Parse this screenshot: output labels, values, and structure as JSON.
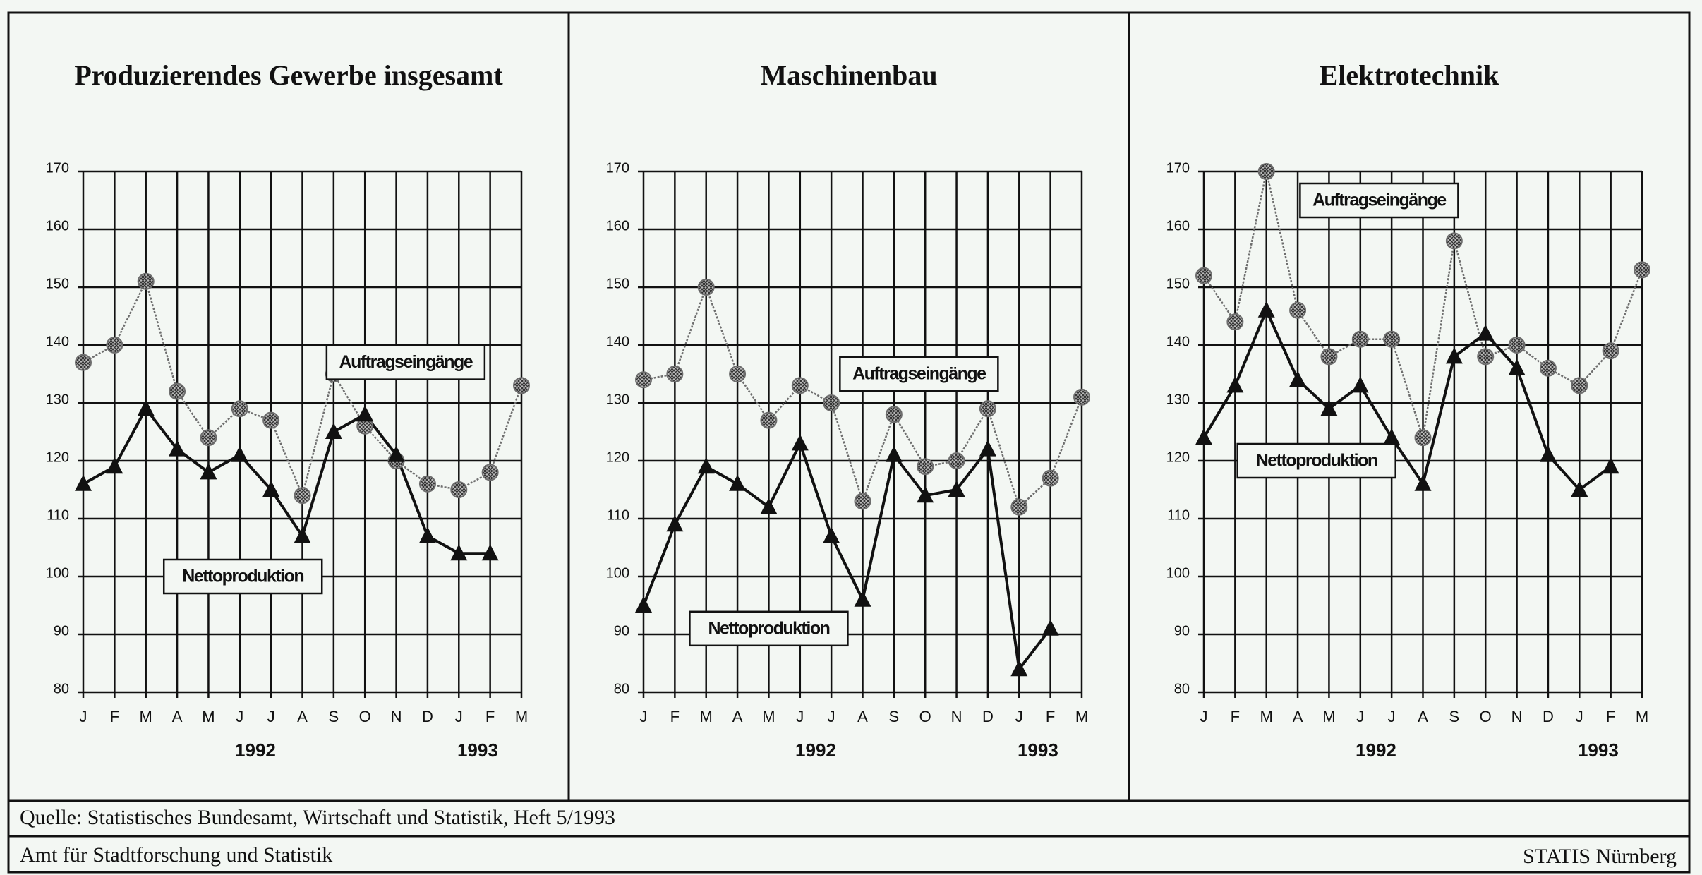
{
  "chart_data": [
    {
      "type": "line",
      "title": "Produzierendes Gewerbe insgesamt",
      "categories": [
        "J",
        "F",
        "M",
        "A",
        "M",
        "J",
        "J",
        "A",
        "S",
        "O",
        "N",
        "D",
        "J",
        "F",
        "M"
      ],
      "years": [
        "1992",
        "1993"
      ],
      "series": [
        {
          "name": "Auftragseingänge",
          "color": "#6e6e6e",
          "marker": "circle",
          "values": [
            137,
            140,
            151,
            132,
            124,
            129,
            127,
            114,
            135,
            126,
            120,
            116,
            115,
            118,
            133
          ]
        },
        {
          "name": "Nettoproduktion",
          "color": "#111111",
          "marker": "triangle",
          "values": [
            116,
            119,
            129,
            122,
            118,
            121,
            115,
            107,
            125,
            128,
            121,
            107,
            104,
            104,
            null
          ]
        }
      ],
      "ylim": [
        80,
        170
      ],
      "yticks": [
        80,
        90,
        100,
        110,
        120,
        130,
        140,
        150,
        160,
        170
      ],
      "grid": true
    },
    {
      "type": "line",
      "title": "Maschinenbau",
      "categories": [
        "J",
        "F",
        "M",
        "A",
        "M",
        "J",
        "J",
        "A",
        "S",
        "O",
        "N",
        "D",
        "J",
        "F",
        "M"
      ],
      "years": [
        "1992",
        "1993"
      ],
      "series": [
        {
          "name": "Auftragseingänge",
          "color": "#6e6e6e",
          "marker": "circle",
          "values": [
            134,
            135,
            150,
            135,
            127,
            133,
            130,
            113,
            128,
            119,
            120,
            129,
            112,
            117,
            131
          ]
        },
        {
          "name": "Nettoproduktion",
          "color": "#111111",
          "marker": "triangle",
          "values": [
            95,
            109,
            119,
            116,
            112,
            123,
            107,
            96,
            121,
            114,
            115,
            122,
            84,
            91,
            null
          ]
        }
      ],
      "ylim": [
        80,
        170
      ],
      "yticks": [
        80,
        90,
        100,
        110,
        120,
        130,
        140,
        150,
        160,
        170
      ],
      "grid": true
    },
    {
      "type": "line",
      "title": "Elektrotechnik",
      "categories": [
        "J",
        "F",
        "M",
        "A",
        "M",
        "J",
        "J",
        "A",
        "S",
        "O",
        "N",
        "D",
        "J",
        "F",
        "M"
      ],
      "years": [
        "1992",
        "1993"
      ],
      "series": [
        {
          "name": "Auftragseingänge",
          "color": "#6e6e6e",
          "marker": "circle",
          "values": [
            152,
            144,
            170,
            146,
            138,
            141,
            141,
            124,
            158,
            138,
            140,
            136,
            133,
            139,
            153
          ]
        },
        {
          "name": "Nettoproduktion",
          "color": "#111111",
          "marker": "triangle",
          "values": [
            124,
            133,
            146,
            134,
            129,
            133,
            124,
            116,
            138,
            142,
            136,
            121,
            115,
            119,
            null
          ]
        }
      ],
      "ylim": [
        80,
        170
      ],
      "yticks": [
        80,
        90,
        100,
        110,
        120,
        130,
        140,
        150,
        160,
        170
      ],
      "grid": true
    }
  ],
  "footer": {
    "source": "Quelle: Statistisches Bundesamt, Wirtschaft und Statistik, Heft 5/1993",
    "left": "Amt für Stadtforschung und Statistik",
    "right": "STATIS Nürnberg"
  }
}
